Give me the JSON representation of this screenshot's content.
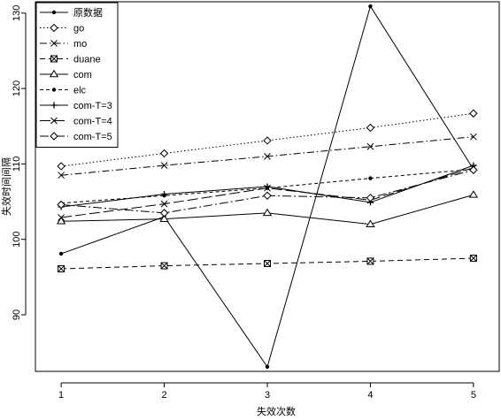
{
  "chart_data": {
    "type": "line",
    "title": "",
    "xlabel": "失效次数",
    "ylabel": "失效时间间隔",
    "x": [
      1,
      2,
      3,
      4,
      5
    ],
    "xlim": [
      0.75,
      5.25
    ],
    "ylim": [
      82.5,
      131.5
    ],
    "xticks": [
      1,
      2,
      3,
      4,
      5
    ],
    "yticks": [
      90,
      100,
      110,
      120,
      130
    ],
    "grid": false,
    "legend_position": "top-left",
    "series": [
      {
        "name": "原数据",
        "values": [
          98.1,
          103.0,
          83.1,
          130.9,
          109.3
        ],
        "dash": "none",
        "marker": "dot"
      },
      {
        "name": "go",
        "values": [
          109.7,
          111.4,
          113.1,
          114.8,
          116.7
        ],
        "dash": "1.5 2.5",
        "marker": "diamond"
      },
      {
        "name": "mo",
        "values": [
          108.5,
          109.8,
          111.0,
          112.3,
          113.6
        ],
        "dash": "8 3 1.5 3",
        "marker": "x"
      },
      {
        "name": "duane",
        "values": [
          96.1,
          96.5,
          96.8,
          97.1,
          97.5
        ],
        "dash": "6 4",
        "marker": "square-x"
      },
      {
        "name": "com",
        "values": [
          102.4,
          102.7,
          103.5,
          102.0,
          105.9
        ],
        "dash": "none",
        "marker": "triangle"
      },
      {
        "name": "elc",
        "values": [
          104.8,
          105.8,
          106.8,
          108.1,
          109.3
        ],
        "dash": "4 3",
        "marker": "dot"
      },
      {
        "name": "com-T=3",
        "values": [
          104.3,
          106.0,
          107.0,
          104.9,
          109.8
        ],
        "dash": "none",
        "marker": "plus"
      },
      {
        "name": "com-T=4",
        "values": [
          102.9,
          104.7,
          106.8,
          105.2,
          109.5
        ],
        "dash": "12 4",
        "marker": "x"
      },
      {
        "name": "com-T=5",
        "values": [
          104.6,
          103.5,
          105.8,
          105.5,
          109.2
        ],
        "dash": "10 3 2 3",
        "marker": "diamond"
      }
    ]
  }
}
